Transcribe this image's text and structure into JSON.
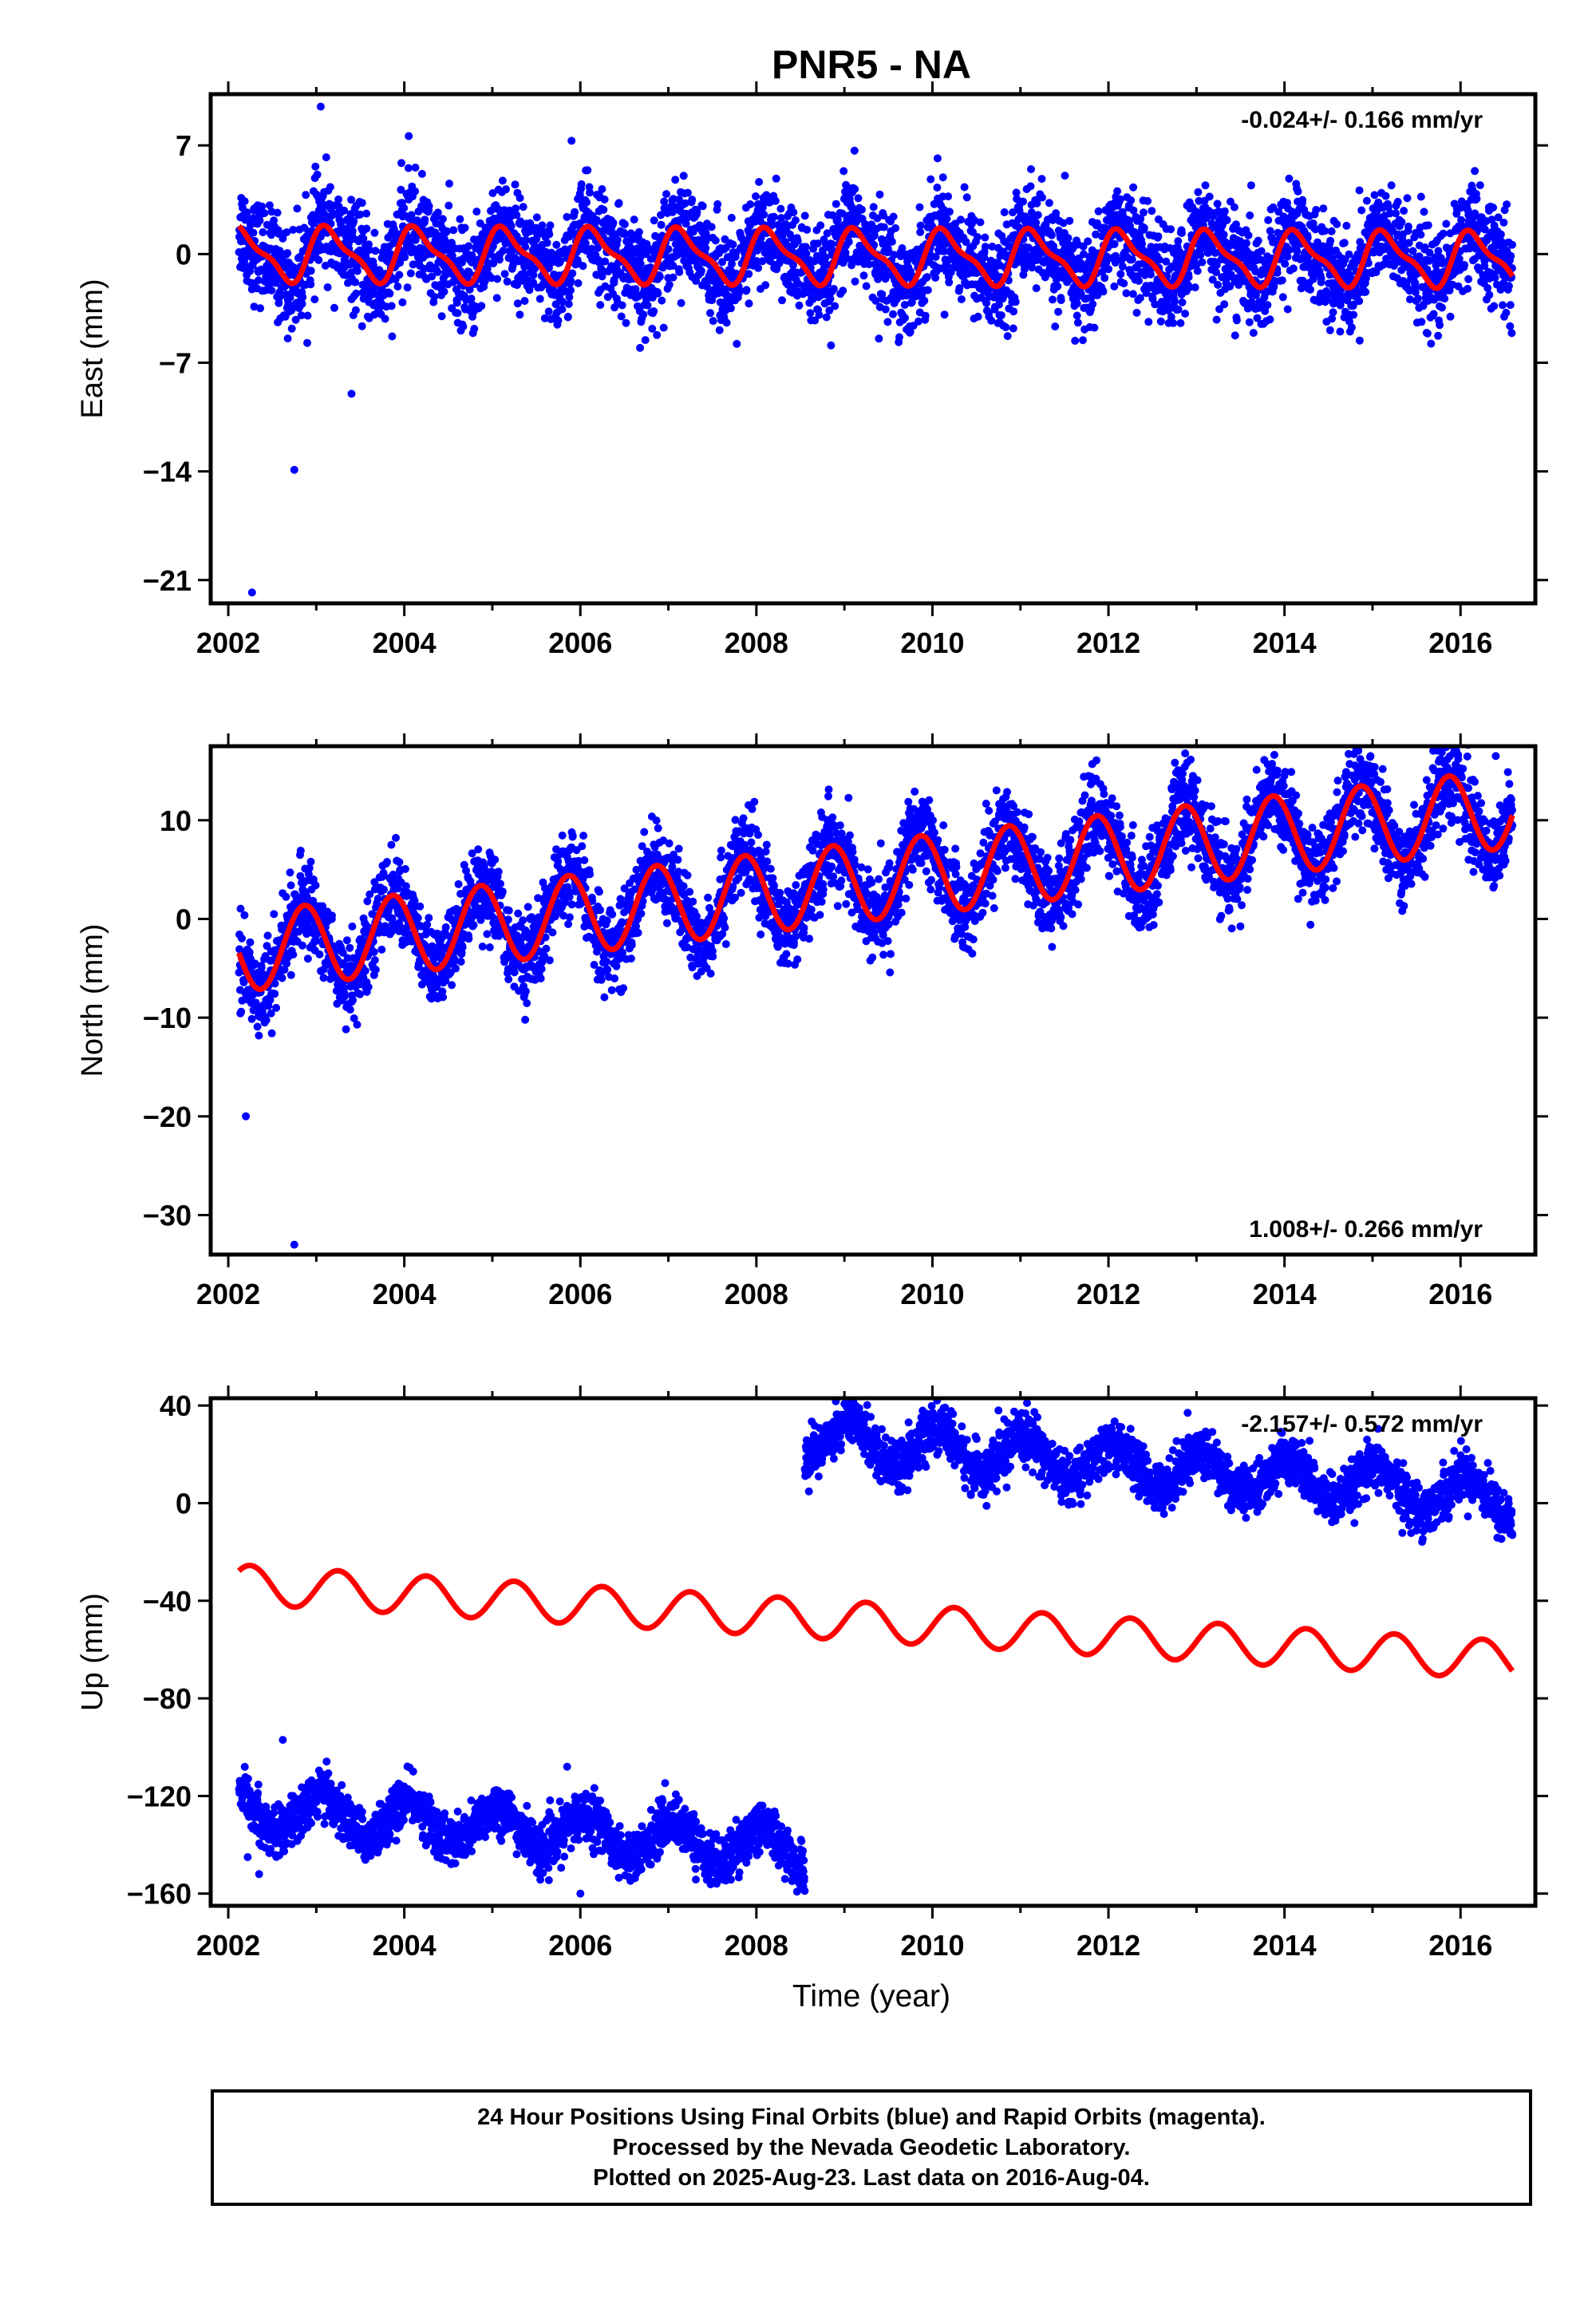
{
  "chart_data": {
    "type": "scatter",
    "title": "PNR5 - NA",
    "xlabel": "Time (year)",
    "x_ticks": [
      2002,
      2004,
      2006,
      2008,
      2010,
      2012,
      2014,
      2016
    ],
    "xlim": [
      2001.8,
      2016.85
    ],
    "colors": {
      "points": "#0000ff",
      "fit": "#ff0000",
      "frame": "#000000"
    },
    "panels": [
      {
        "id": "east",
        "ylabel": "East (mm)",
        "ylim": [
          -22.5,
          10.3
        ],
        "y_ticks": [
          7,
          0,
          -7,
          -14,
          -21
        ],
        "y_tick_labels": [
          "7",
          "0",
          "−7",
          "−14",
          "−21"
        ],
        "rate_label": "-0.024+/- 0.166 mm/yr",
        "rate_position": "top-right",
        "data_start": 2002.12,
        "data_end": 2016.59,
        "fit": {
          "offset": 0.0,
          "rate": -0.024,
          "annual_amp": 1.6,
          "semiannual_amp": 0.55,
          "phase": 0.6
        },
        "scatter_sd": 1.6,
        "outliers": [
          {
            "x": 2002.27,
            "y": -21.8
          },
          {
            "x": 2002.75,
            "y": -13.9
          },
          {
            "x": 2003.05,
            "y": 9.5
          },
          {
            "x": 2003.4,
            "y": -9.0
          },
          {
            "x": 2005.9,
            "y": 7.3
          },
          {
            "x": 2004.05,
            "y": 7.6
          }
        ]
      },
      {
        "id": "north",
        "ylabel": "North (mm)",
        "ylim": [
          -34,
          17.5
        ],
        "y_ticks": [
          10,
          0,
          -10,
          -20,
          -30
        ],
        "y_tick_labels": [
          "10",
          "0",
          "−10",
          "−20",
          "−30"
        ],
        "rate_label": "1.008+/- 0.266 mm/yr",
        "rate_position": "bottom-right",
        "data_start": 2002.12,
        "data_end": 2016.59,
        "fit": {
          "offset": -3.5,
          "rate": 1.008,
          "annual_amp": 4.0,
          "semiannual_amp": 0.0,
          "phase": 2.4
        },
        "scatter_sd": 2.1,
        "outliers": [
          {
            "x": 2002.75,
            "y": -33.0
          },
          {
            "x": 2002.2,
            "y": -20.0
          },
          {
            "x": 2016.4,
            "y": 16.5
          }
        ]
      },
      {
        "id": "up",
        "ylabel": "Up (mm)",
        "ylim": [
          -165,
          43
        ],
        "y_ticks": [
          40,
          0,
          -40,
          -80,
          -120,
          -160
        ],
        "y_tick_labels": [
          "40",
          "0",
          "−40",
          "−80",
          "−120",
          "−160"
        ],
        "rate_label": "-2.157+/- 0.572 mm/yr",
        "rate_position": "top-right",
        "data_start": 2002.12,
        "data_end": 2016.59,
        "fit": {
          "offset": -33.0,
          "rate": -2.157,
          "annual_amp": 8.0,
          "semiannual_amp": 0.0,
          "phase": 0.0
        },
        "segments": [
          {
            "start": 2002.12,
            "end": 2008.55,
            "mean_start": -125,
            "mean_end": -142,
            "annual_amp": 8,
            "sd": 5
          },
          {
            "start": 2008.55,
            "end": 2016.59,
            "mean_start": 27,
            "mean_end": 2,
            "annual_amp": 8,
            "sd": 5
          }
        ],
        "outliers": [
          {
            "x": 2002.62,
            "y": -97
          },
          {
            "x": 2002.35,
            "y": -152
          },
          {
            "x": 2005.85,
            "y": -108
          },
          {
            "x": 2006.0,
            "y": -160
          },
          {
            "x": 2010.75,
            "y": 38
          },
          {
            "x": 2012.9,
            "y": 37
          }
        ]
      }
    ]
  },
  "footer": {
    "line1": "24 Hour Positions Using Final Orbits (blue) and Rapid Orbits (magenta).",
    "line2": "Processed by the Nevada Geodetic Laboratory.",
    "line3": "Plotted on 2025-Aug-23. Last data on 2016-Aug-04."
  }
}
